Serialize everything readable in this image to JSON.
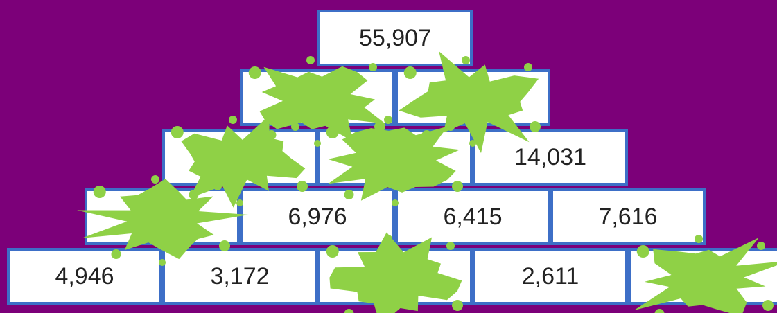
{
  "pyramid": {
    "rows": [
      [
        "55,907"
      ],
      [
        null,
        null
      ],
      [
        null,
        null,
        "14,031"
      ],
      [
        null,
        "6,976",
        "6,415",
        "7,616"
      ],
      [
        "4,946",
        "3,172",
        null,
        "2,611",
        null
      ]
    ]
  }
}
